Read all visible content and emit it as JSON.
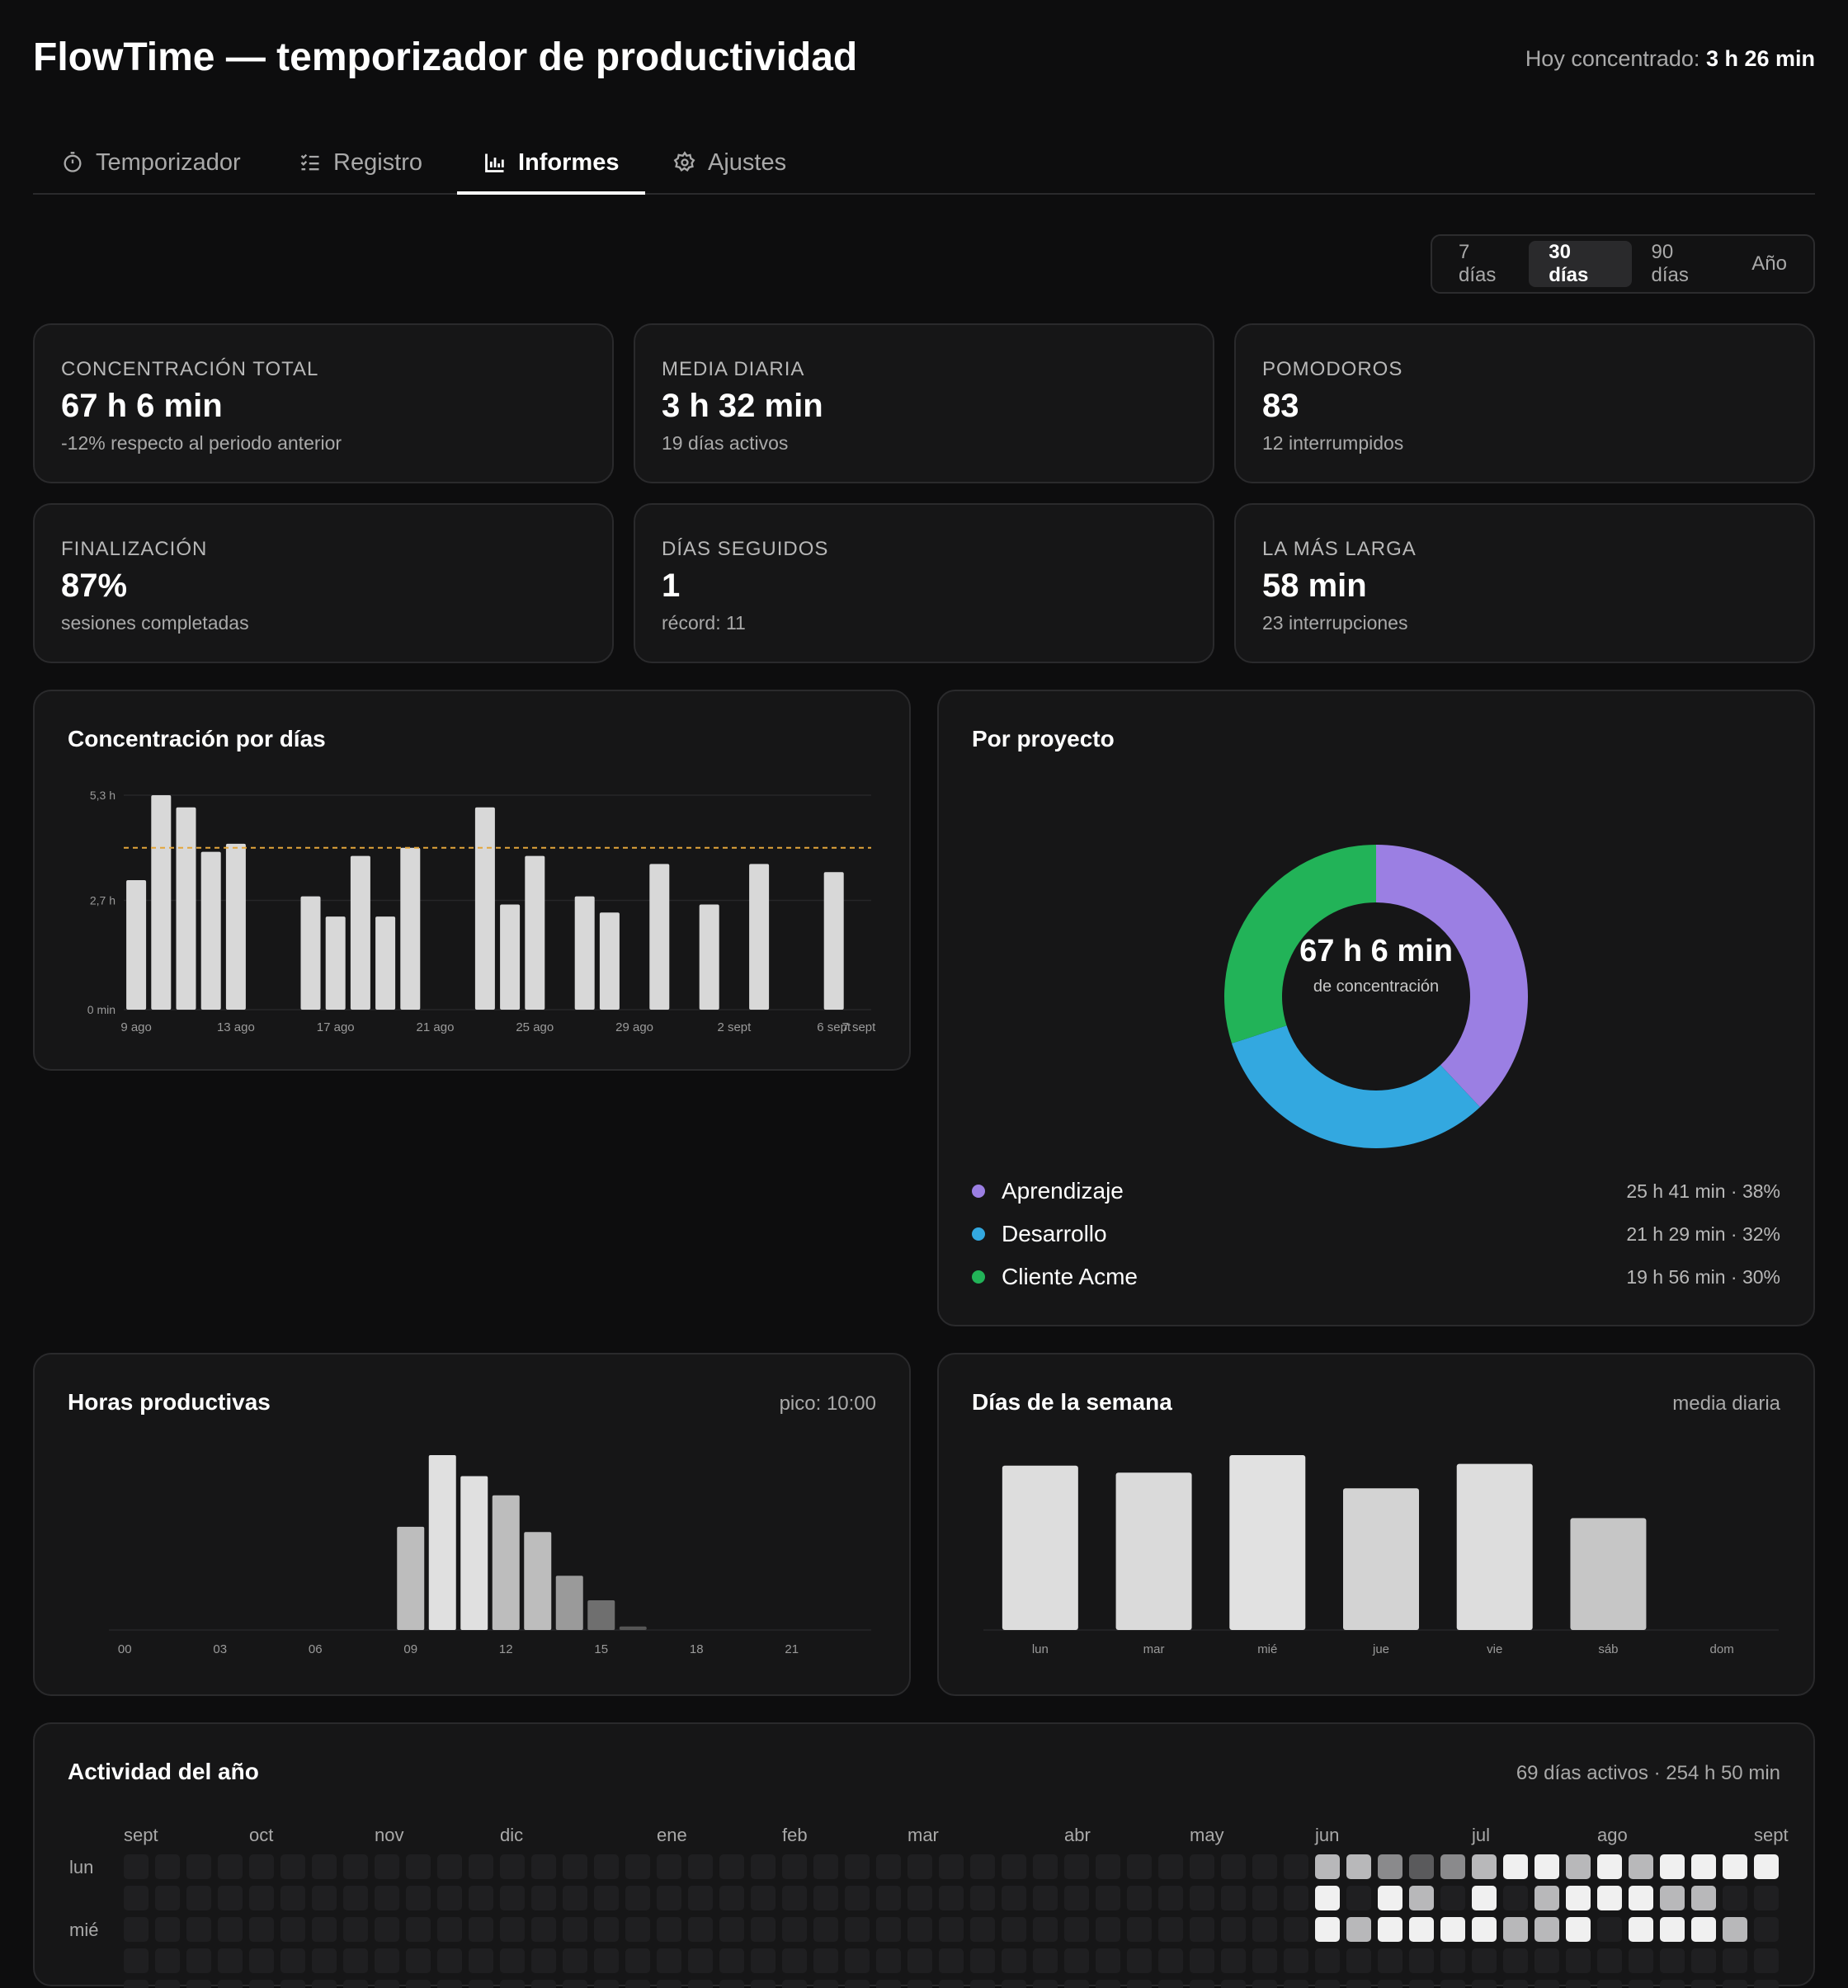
{
  "app": {
    "title": "FlowTime — temporizador de productividad",
    "today_label": "Hoy concentrado:",
    "today_value": "3 h 26 min"
  },
  "tabs": [
    {
      "label": "Temporizador",
      "icon": "stopwatch-icon",
      "active": false
    },
    {
      "label": "Registro",
      "icon": "checklist-icon",
      "active": false
    },
    {
      "label": "Informes",
      "icon": "bar-chart-icon",
      "active": true
    },
    {
      "label": "Ajustes",
      "icon": "gear-icon",
      "active": false
    }
  ],
  "range": {
    "options": [
      "7 días",
      "30 días",
      "90 días",
      "Año"
    ],
    "selected": "30 días"
  },
  "stats": [
    {
      "label": "CONCENTRACIÓN TOTAL",
      "value": "67 h 6 min",
      "sub": "-12% respecto al periodo anterior"
    },
    {
      "label": "MEDIA DIARIA",
      "value": "3 h 32 min",
      "sub": "19 días activos"
    },
    {
      "label": "POMODOROS",
      "value": "83",
      "sub": "12 interrumpidos"
    },
    {
      "label": "FINALIZACIÓN",
      "value": "87%",
      "sub": "sesiones completadas"
    },
    {
      "label": "DÍAS SEGUIDOS",
      "value": "1",
      "sub": "récord: 11"
    },
    {
      "label": "LA MÁS LARGA",
      "value": "58 min",
      "sub": "23 interrupciones"
    }
  ],
  "daily": {
    "title": "Concentración por días"
  },
  "projects": {
    "title": "Por proyecto",
    "center_value": "67 h 6 min",
    "center_label": "de concentración",
    "items": [
      {
        "name": "Aprendizaje",
        "amount": "25 h 41 min · 38%",
        "color": "#9b7fe3"
      },
      {
        "name": "Desarrollo",
        "amount": "21 h 29 min · 32%",
        "color": "#33a8e0"
      },
      {
        "name": "Cliente Acme",
        "amount": "19 h 56 min · 30%",
        "color": "#22b358"
      }
    ]
  },
  "hours": {
    "title": "Horas productivas",
    "note": "pico: 10:00"
  },
  "weekdays": {
    "title": "Días de la semana",
    "note": "media diaria"
  },
  "activity": {
    "title": "Actividad del año",
    "note": "69 días activos · 254 h 50 min",
    "months": [
      {
        "label": "sept",
        "col": 0
      },
      {
        "label": "oct",
        "col": 4
      },
      {
        "label": "nov",
        "col": 8
      },
      {
        "label": "dic",
        "col": 12
      },
      {
        "label": "ene",
        "col": 17
      },
      {
        "label": "feb",
        "col": 21
      },
      {
        "label": "mar",
        "col": 25
      },
      {
        "label": "abr",
        "col": 30
      },
      {
        "label": "may",
        "col": 34
      },
      {
        "label": "jun",
        "col": 38
      },
      {
        "label": "jul",
        "col": 43
      },
      {
        "label": "ago",
        "col": 47
      },
      {
        "label": "sept",
        "col": 52
      }
    ],
    "day_labels": [
      {
        "label": "lun",
        "row": 0
      },
      {
        "label": "mié",
        "row": 2
      }
    ],
    "levels": {
      "row0": [
        4,
        4,
        3,
        2,
        3,
        4,
        5,
        5,
        4,
        5,
        4,
        5,
        5,
        5,
        5
      ],
      "row1": [
        5,
        0,
        5,
        4,
        0,
        5,
        0,
        4,
        5,
        5,
        5,
        4,
        4
      ],
      "row2": [
        5,
        4,
        5,
        5,
        5,
        5,
        4,
        4,
        5,
        0,
        5,
        5,
        5,
        4
      ]
    }
  },
  "chart_data": [
    {
      "type": "bar",
      "title": "Concentración por días",
      "x": [
        "9 ago",
        "10 ago",
        "11 ago",
        "12 ago",
        "13 ago",
        "14 ago",
        "15 ago",
        "16 ago",
        "17 ago",
        "18 ago",
        "19 ago",
        "20 ago",
        "21 ago",
        "22 ago",
        "23 ago",
        "24 ago",
        "25 ago",
        "26 ago",
        "27 ago",
        "28 ago",
        "29 ago",
        "30 ago",
        "31 ago",
        "1 sept",
        "2 sept",
        "3 sept",
        "4 sept",
        "5 sept",
        "6 sept",
        "7 sept"
      ],
      "x_tick_labels": [
        "9 ago",
        "13 ago",
        "17 ago",
        "21 ago",
        "25 ago",
        "29 ago",
        "2 sept",
        "6 sept",
        "7 sept"
      ],
      "values_hours": [
        3.2,
        5.3,
        5.0,
        3.9,
        4.1,
        0,
        0,
        2.8,
        2.3,
        3.8,
        2.3,
        4.0,
        0,
        0,
        5.0,
        2.6,
        3.8,
        0,
        2.8,
        2.4,
        0,
        3.6,
        0,
        2.6,
        0,
        3.6,
        0,
        0,
        3.4,
        0
      ],
      "y_tick_labels": [
        "0 min",
        "2,7 h",
        "5,3 h"
      ],
      "ylim": [
        0,
        5.3
      ],
      "reference_line_hours": 4.0,
      "grid": true
    },
    {
      "type": "pie",
      "title": "Por proyecto",
      "labels": [
        "Aprendizaje",
        "Desarrollo",
        "Cliente Acme"
      ],
      "values": [
        38,
        32,
        30
      ],
      "durations": [
        "25 h 41 min",
        "21 h 29 min",
        "19 h 56 min"
      ],
      "colors": [
        "#9b7fe3",
        "#33a8e0",
        "#22b358"
      ]
    },
    {
      "type": "bar",
      "title": "Horas productivas",
      "x": [
        0,
        1,
        2,
        3,
        4,
        5,
        6,
        7,
        8,
        9,
        10,
        11,
        12,
        13,
        14,
        15,
        16,
        17,
        18,
        19,
        20,
        21,
        22,
        23
      ],
      "x_tick_labels": [
        "00",
        "03",
        "06",
        "09",
        "12",
        "15",
        "18",
        "21"
      ],
      "values_relative": [
        0,
        0,
        0,
        0,
        0,
        0,
        0,
        0,
        0,
        0.59,
        1.0,
        0.88,
        0.77,
        0.56,
        0.31,
        0.17,
        0.02,
        0,
        0,
        0,
        0,
        0,
        0,
        0
      ],
      "peak": "10:00"
    },
    {
      "type": "bar",
      "title": "Días de la semana",
      "categories": [
        "lun",
        "mar",
        "mié",
        "jue",
        "vie",
        "sáb",
        "dom"
      ],
      "values_relative": [
        0.94,
        0.9,
        1.0,
        0.81,
        0.95,
        0.64,
        0
      ],
      "note": "media diaria"
    }
  ]
}
